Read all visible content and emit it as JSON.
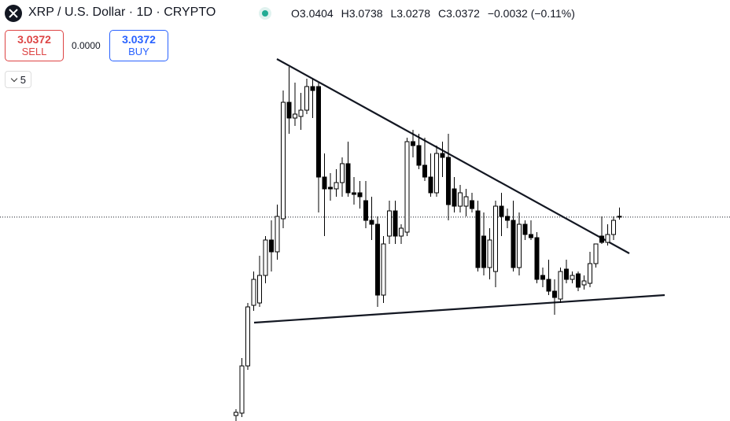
{
  "header": {
    "title": "XRP / U.S. Dollar · 1D · CRYPTO",
    "ohlc_labels": [
      "O",
      "H",
      "L",
      "C"
    ],
    "change": "−0.0032 (−0.11%)",
    "sell_price": 3.0372,
    "sell_label": "SELL",
    "spread": "0.0000",
    "buy_price": 3.0372,
    "buy_label": "BUY",
    "indicators": 5
  },
  "chart_data": {
    "type": "candlestick",
    "ylim": [
      2.26,
      3.865
    ],
    "up_color": "#ffffff",
    "down_color": "#000000",
    "open": [
      2.281,
      2.29,
      2.47,
      2.701,
      2.71,
      2.815,
      2.95,
      2.905,
      3.031,
      3.475,
      3.415,
      3.421,
      3.445,
      3.535,
      3.535,
      3.19,
      3.151,
      3.145,
      3.169,
      3.241,
      3.13,
      3.13,
      3.1,
      3.025,
      3.01,
      2.74,
      2.965,
      3.061,
      2.965,
      2.98,
      3.325,
      3.31,
      3.235,
      3.19,
      3.13,
      3.28,
      3.265,
      3.145,
      3.079,
      3.079,
      3.1,
      3.061,
      2.965,
      2.845,
      2.83,
      3.079,
      3.04,
      3.025,
      2.845,
      3.01,
      2.971,
      2.959,
      2.815,
      2.8,
      2.755,
      2.725,
      2.839,
      2.8,
      2.821,
      2.779,
      2.785,
      2.86,
      2.965,
      2.941,
      2.971,
      3.0404
    ],
    "high": [
      2.305,
      2.5,
      2.71,
      2.83,
      2.89,
      2.965,
      3.025,
      3.085,
      3.52,
      3.61,
      3.55,
      3.511,
      3.565,
      3.565,
      3.55,
      3.28,
      3.205,
      3.22,
      3.265,
      3.325,
      3.19,
      3.175,
      3.175,
      3.115,
      3.04,
      2.965,
      3.1,
      3.1,
      3.01,
      3.34,
      3.37,
      3.355,
      3.34,
      3.28,
      3.31,
      3.325,
      3.355,
      3.19,
      3.16,
      3.145,
      3.13,
      3.1,
      3.055,
      2.995,
      3.1,
      3.13,
      3.07,
      3.1,
      3.055,
      3.025,
      3.025,
      2.98,
      2.845,
      2.875,
      2.8,
      2.845,
      2.875,
      2.83,
      2.83,
      2.815,
      2.905,
      2.935,
      3.04,
      3.01,
      3.04,
      3.0738
    ],
    "low": [
      2.26,
      2.275,
      2.455,
      2.68,
      2.695,
      2.785,
      2.83,
      2.875,
      2.995,
      3.355,
      3.385,
      3.37,
      3.43,
      3.415,
      3.055,
      2.965,
      3.1,
      3.115,
      3.115,
      3.115,
      3.085,
      3.07,
      2.995,
      2.95,
      2.695,
      2.71,
      2.935,
      2.935,
      2.935,
      2.965,
      3.265,
      3.22,
      3.175,
      3.115,
      3.115,
      3.19,
      3.025,
      3.055,
      3.055,
      3.04,
      3.055,
      2.83,
      2.815,
      2.8,
      2.77,
      2.965,
      2.995,
      2.83,
      2.815,
      2.95,
      2.95,
      2.785,
      2.77,
      2.74,
      2.665,
      2.71,
      2.785,
      2.785,
      2.755,
      2.761,
      2.77,
      2.845,
      2.935,
      2.929,
      2.95,
      3.0278
    ],
    "close": [
      2.293,
      2.47,
      2.695,
      2.8,
      2.815,
      2.95,
      2.905,
      3.04,
      3.475,
      3.415,
      3.43,
      3.445,
      3.535,
      3.52,
      3.19,
      3.145,
      3.145,
      3.169,
      3.241,
      3.13,
      3.124,
      3.115,
      3.025,
      3.01,
      2.74,
      2.935,
      3.061,
      2.965,
      2.995,
      3.325,
      3.31,
      3.235,
      3.19,
      3.13,
      3.28,
      3.265,
      3.085,
      3.079,
      3.13,
      3.115,
      3.07,
      2.845,
      2.845,
      2.95,
      3.079,
      3.04,
      3.025,
      2.845,
      3.01,
      2.971,
      2.959,
      2.8,
      2.8,
      2.755,
      2.731,
      2.83,
      2.8,
      2.815,
      2.77,
      2.794,
      2.86,
      2.935,
      2.941,
      2.971,
      3.025,
      3.0372
    ]
  }
}
